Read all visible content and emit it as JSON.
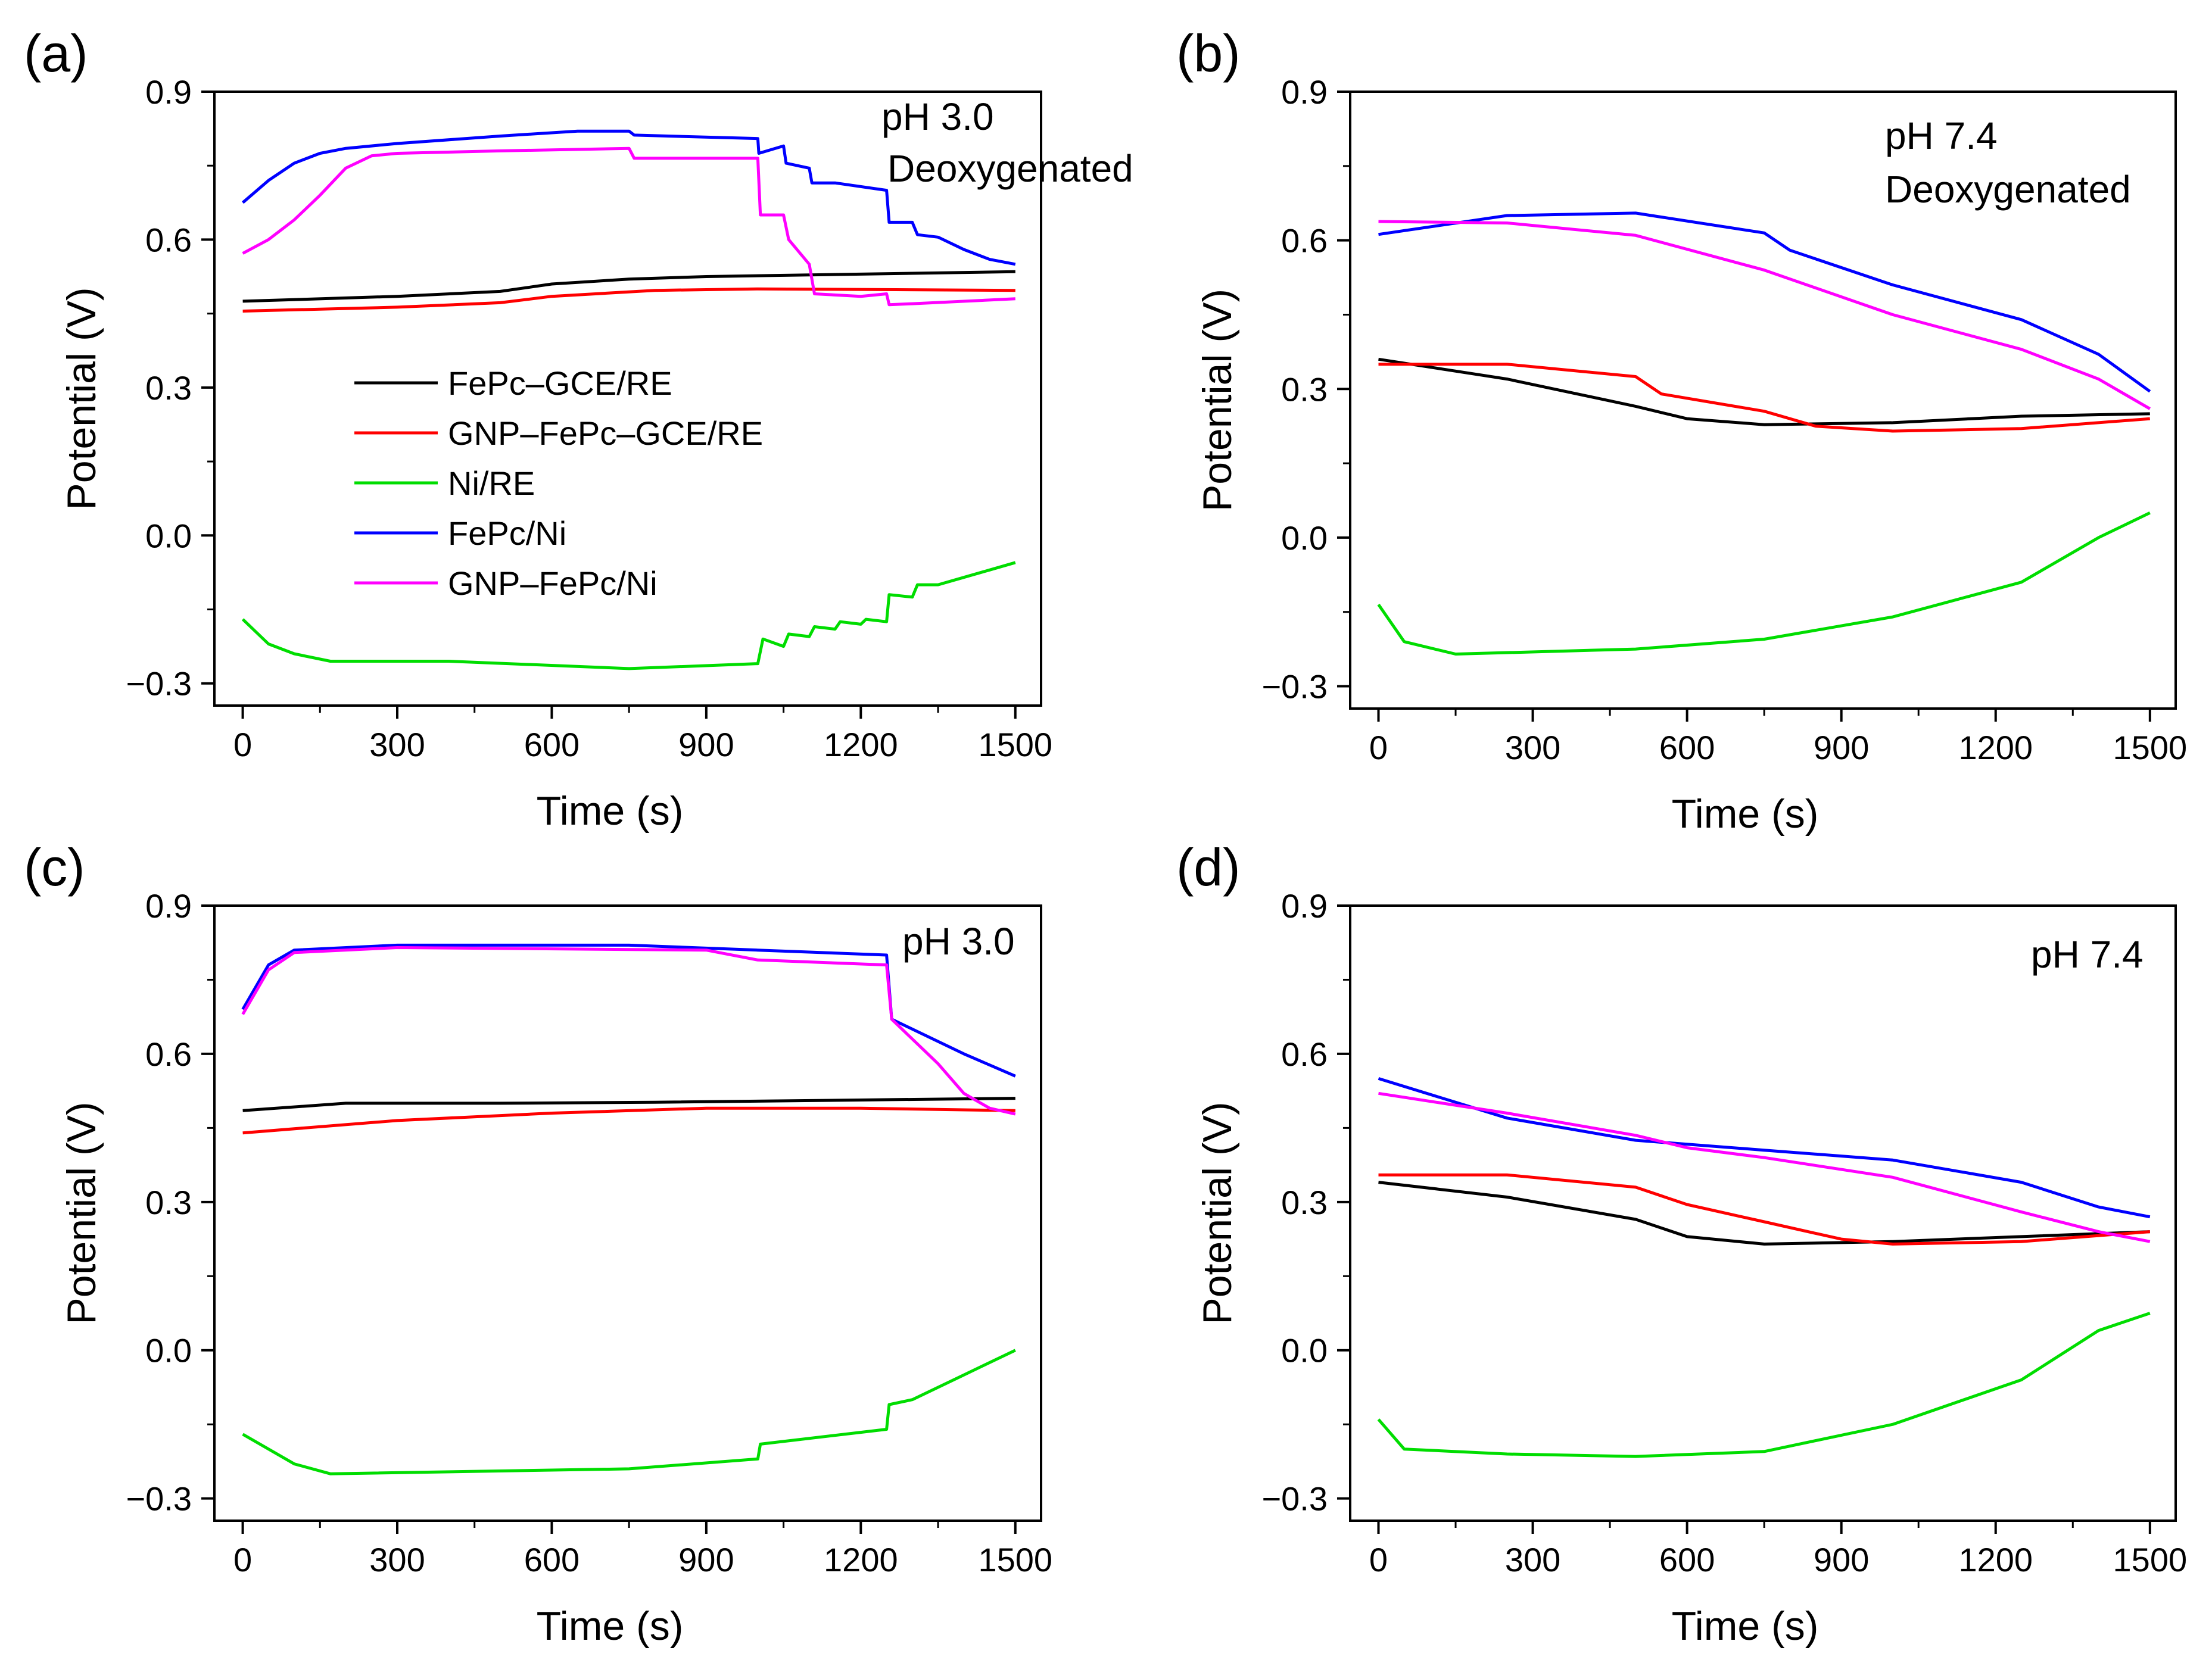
{
  "colors": {
    "FePc-GCE/RE": "#000000",
    "GNP-FePc-GCE/RE": "#ff0000",
    "Ni/RE": "#00dd00",
    "FePc/Ni": "#0000ff",
    "GNP-FePc/Ni": "#ff00ff"
  },
  "legend": [
    "FePc–GCE/RE",
    "GNP–FePc–GCE/RE",
    "Ni/RE",
    "FePc/Ni",
    "GNP–FePc/Ni"
  ],
  "chart_data": [
    {
      "type": "line",
      "panel": "(a)",
      "annotation": [
        "pH 3.0",
        "Deoxygenated"
      ],
      "xlabel": "Time (s)",
      "ylabel": "Potential (V)",
      "xlim": [
        -55,
        1550
      ],
      "ylim": [
        -0.345,
        0.9
      ],
      "xticks": [
        0,
        300,
        600,
        900,
        1200,
        1500
      ],
      "yticks": [
        -0.3,
        0.0,
        0.3,
        0.6,
        0.9
      ],
      "ytick_labels": [
        "−0.3",
        "0.0",
        "0.3",
        "0.6",
        "0.9"
      ],
      "legend": true,
      "series": [
        {
          "name": "FePc–GCE/RE",
          "points": [
            [
              0,
              0.475
            ],
            [
              300,
              0.485
            ],
            [
              500,
              0.495
            ],
            [
              600,
              0.51
            ],
            [
              750,
              0.52
            ],
            [
              900,
              0.525
            ],
            [
              1200,
              0.53
            ],
            [
              1500,
              0.535
            ]
          ]
        },
        {
          "name": "GNP–FePc–GCE/RE",
          "points": [
            [
              0,
              0.455
            ],
            [
              300,
              0.463
            ],
            [
              500,
              0.472
            ],
            [
              600,
              0.485
            ],
            [
              800,
              0.497
            ],
            [
              1000,
              0.5
            ],
            [
              1500,
              0.497
            ]
          ]
        },
        {
          "name": "Ni/RE",
          "points": [
            [
              0,
              -0.17
            ],
            [
              50,
              -0.22
            ],
            [
              100,
              -0.24
            ],
            [
              170,
              -0.255
            ],
            [
              400,
              -0.255
            ],
            [
              750,
              -0.27
            ],
            [
              1000,
              -0.26
            ],
            [
              1010,
              -0.21
            ],
            [
              1050,
              -0.225
            ],
            [
              1060,
              -0.2
            ],
            [
              1100,
              -0.205
            ],
            [
              1110,
              -0.185
            ],
            [
              1150,
              -0.19
            ],
            [
              1160,
              -0.175
            ],
            [
              1200,
              -0.18
            ],
            [
              1210,
              -0.17
            ],
            [
              1250,
              -0.175
            ],
            [
              1255,
              -0.12
            ],
            [
              1300,
              -0.125
            ],
            [
              1310,
              -0.1
            ],
            [
              1350,
              -0.1
            ],
            [
              1400,
              -0.085
            ],
            [
              1450,
              -0.07
            ],
            [
              1500,
              -0.055
            ]
          ]
        },
        {
          "name": "FePc/Ni",
          "points": [
            [
              0,
              0.675
            ],
            [
              50,
              0.72
            ],
            [
              100,
              0.755
            ],
            [
              150,
              0.775
            ],
            [
              200,
              0.785
            ],
            [
              300,
              0.795
            ],
            [
              500,
              0.81
            ],
            [
              650,
              0.82
            ],
            [
              750,
              0.82
            ],
            [
              760,
              0.812
            ],
            [
              1000,
              0.805
            ],
            [
              1002,
              0.775
            ],
            [
              1050,
              0.79
            ],
            [
              1055,
              0.755
            ],
            [
              1100,
              0.745
            ],
            [
              1105,
              0.715
            ],
            [
              1150,
              0.715
            ],
            [
              1250,
              0.7
            ],
            [
              1255,
              0.635
            ],
            [
              1300,
              0.635
            ],
            [
              1310,
              0.61
            ],
            [
              1350,
              0.605
            ],
            [
              1400,
              0.58
            ],
            [
              1450,
              0.56
            ],
            [
              1500,
              0.55
            ]
          ]
        },
        {
          "name": "GNP–FePc/Ni",
          "points": [
            [
              0,
              0.572
            ],
            [
              50,
              0.6
            ],
            [
              100,
              0.64
            ],
            [
              150,
              0.69
            ],
            [
              200,
              0.745
            ],
            [
              250,
              0.77
            ],
            [
              300,
              0.775
            ],
            [
              500,
              0.78
            ],
            [
              750,
              0.785
            ],
            [
              760,
              0.765
            ],
            [
              1000,
              0.765
            ],
            [
              1005,
              0.65
            ],
            [
              1050,
              0.65
            ],
            [
              1060,
              0.6
            ],
            [
              1100,
              0.55
            ],
            [
              1110,
              0.49
            ],
            [
              1200,
              0.485
            ],
            [
              1250,
              0.49
            ],
            [
              1255,
              0.468
            ],
            [
              1300,
              0.47
            ],
            [
              1500,
              0.48
            ]
          ]
        }
      ]
    },
    {
      "type": "line",
      "panel": "(b)",
      "annotation": [
        "pH 7.4",
        "Deoxygenated"
      ],
      "xlabel": "Time (s)",
      "ylabel": "Potential (V)",
      "xlim": [
        -55,
        1550
      ],
      "ylim": [
        -0.345,
        0.9
      ],
      "xticks": [
        0,
        300,
        600,
        900,
        1200,
        1500
      ],
      "yticks": [
        -0.3,
        0.0,
        0.3,
        0.6,
        0.9
      ],
      "ytick_labels": [
        "−0.3",
        "0.0",
        "0.3",
        "0.6",
        "0.9"
      ],
      "legend": false,
      "series": [
        {
          "name": "FePc–GCE/RE",
          "points": [
            [
              0,
              0.36
            ],
            [
              250,
              0.32
            ],
            [
              500,
              0.265
            ],
            [
              600,
              0.24
            ],
            [
              750,
              0.228
            ],
            [
              1000,
              0.232
            ],
            [
              1250,
              0.245
            ],
            [
              1500,
              0.25
            ]
          ]
        },
        {
          "name": "GNP–FePc–GCE/RE",
          "points": [
            [
              0,
              0.35
            ],
            [
              250,
              0.35
            ],
            [
              500,
              0.325
            ],
            [
              550,
              0.29
            ],
            [
              750,
              0.255
            ],
            [
              850,
              0.225
            ],
            [
              1000,
              0.215
            ],
            [
              1250,
              0.22
            ],
            [
              1500,
              0.24
            ]
          ]
        },
        {
          "name": "Ni/RE",
          "points": [
            [
              0,
              -0.135
            ],
            [
              50,
              -0.21
            ],
            [
              150,
              -0.235
            ],
            [
              500,
              -0.225
            ],
            [
              750,
              -0.205
            ],
            [
              1000,
              -0.16
            ],
            [
              1250,
              -0.09
            ],
            [
              1400,
              0.0
            ],
            [
              1500,
              0.05
            ]
          ]
        },
        {
          "name": "FePc/Ni",
          "points": [
            [
              0,
              0.612
            ],
            [
              250,
              0.65
            ],
            [
              500,
              0.655
            ],
            [
              750,
              0.615
            ],
            [
              800,
              0.58
            ],
            [
              1000,
              0.51
            ],
            [
              1250,
              0.44
            ],
            [
              1400,
              0.37
            ],
            [
              1500,
              0.295
            ]
          ]
        },
        {
          "name": "GNP–FePc/Ni",
          "points": [
            [
              0,
              0.638
            ],
            [
              250,
              0.635
            ],
            [
              500,
              0.61
            ],
            [
              750,
              0.54
            ],
            [
              1000,
              0.45
            ],
            [
              1250,
              0.38
            ],
            [
              1400,
              0.32
            ],
            [
              1500,
              0.26
            ]
          ]
        }
      ]
    },
    {
      "type": "line",
      "panel": "(c)",
      "annotation": [
        "pH 3.0"
      ],
      "xlabel": "Time (s)",
      "ylabel": "Potential (V)",
      "xlim": [
        -55,
        1550
      ],
      "ylim": [
        -0.345,
        0.9
      ],
      "xticks": [
        0,
        300,
        600,
        900,
        1200,
        1500
      ],
      "yticks": [
        -0.3,
        0.0,
        0.3,
        0.6,
        0.9
      ],
      "ytick_labels": [
        "−0.3",
        "0.0",
        "0.3",
        "0.6",
        "0.9"
      ],
      "legend": false,
      "series": [
        {
          "name": "FePc–GCE/RE",
          "points": [
            [
              0,
              0.485
            ],
            [
              200,
              0.5
            ],
            [
              500,
              0.5
            ],
            [
              800,
              0.502
            ],
            [
              1500,
              0.51
            ]
          ]
        },
        {
          "name": "GNP–FePc–GCE/RE",
          "points": [
            [
              0,
              0.44
            ],
            [
              300,
              0.465
            ],
            [
              600,
              0.48
            ],
            [
              900,
              0.49
            ],
            [
              1200,
              0.49
            ],
            [
              1500,
              0.485
            ]
          ]
        },
        {
          "name": "Ni/RE",
          "points": [
            [
              0,
              -0.17
            ],
            [
              100,
              -0.23
            ],
            [
              170,
              -0.25
            ],
            [
              750,
              -0.24
            ],
            [
              1000,
              -0.22
            ],
            [
              1005,
              -0.19
            ],
            [
              1250,
              -0.16
            ],
            [
              1255,
              -0.11
            ],
            [
              1300,
              -0.1
            ],
            [
              1400,
              -0.05
            ],
            [
              1500,
              0.0
            ]
          ]
        },
        {
          "name": "FePc/Ni",
          "points": [
            [
              0,
              0.69
            ],
            [
              50,
              0.78
            ],
            [
              100,
              0.81
            ],
            [
              300,
              0.82
            ],
            [
              750,
              0.82
            ],
            [
              1000,
              0.81
            ],
            [
              1250,
              0.8
            ],
            [
              1260,
              0.67
            ],
            [
              1300,
              0.65
            ],
            [
              1400,
              0.6
            ],
            [
              1500,
              0.555
            ]
          ]
        },
        {
          "name": "GNP–FePc/Ni",
          "points": [
            [
              0,
              0.68
            ],
            [
              50,
              0.77
            ],
            [
              100,
              0.805
            ],
            [
              300,
              0.815
            ],
            [
              900,
              0.81
            ],
            [
              1000,
              0.79
            ],
            [
              1250,
              0.78
            ],
            [
              1260,
              0.67
            ],
            [
              1350,
              0.58
            ],
            [
              1400,
              0.52
            ],
            [
              1450,
              0.49
            ],
            [
              1500,
              0.478
            ]
          ]
        }
      ]
    },
    {
      "type": "line",
      "panel": "(d)",
      "annotation": [
        "pH 7.4"
      ],
      "xlabel": "Time (s)",
      "ylabel": "Potential (V)",
      "xlim": [
        -55,
        1550
      ],
      "ylim": [
        -0.345,
        0.9
      ],
      "xticks": [
        0,
        300,
        600,
        900,
        1200,
        1500
      ],
      "yticks": [
        -0.3,
        0.0,
        0.3,
        0.6,
        0.9
      ],
      "ytick_labels": [
        "−0.3",
        "0.0",
        "0.3",
        "0.6",
        "0.9"
      ],
      "legend": false,
      "series": [
        {
          "name": "FePc–GCE/RE",
          "points": [
            [
              0,
              0.34
            ],
            [
              250,
              0.31
            ],
            [
              500,
              0.265
            ],
            [
              600,
              0.23
            ],
            [
              750,
              0.215
            ],
            [
              1000,
              0.22
            ],
            [
              1250,
              0.23
            ],
            [
              1500,
              0.24
            ]
          ]
        },
        {
          "name": "GNP–FePc–GCE/RE",
          "points": [
            [
              0,
              0.355
            ],
            [
              250,
              0.355
            ],
            [
              500,
              0.33
            ],
            [
              600,
              0.295
            ],
            [
              750,
              0.26
            ],
            [
              900,
              0.225
            ],
            [
              1000,
              0.215
            ],
            [
              1250,
              0.22
            ],
            [
              1500,
              0.24
            ]
          ]
        },
        {
          "name": "Ni/RE",
          "points": [
            [
              0,
              -0.14
            ],
            [
              50,
              -0.2
            ],
            [
              250,
              -0.21
            ],
            [
              500,
              -0.215
            ],
            [
              750,
              -0.205
            ],
            [
              1000,
              -0.15
            ],
            [
              1250,
              -0.06
            ],
            [
              1400,
              0.04
            ],
            [
              1500,
              0.075
            ]
          ]
        },
        {
          "name": "FePc/Ni",
          "points": [
            [
              0,
              0.55
            ],
            [
              250,
              0.47
            ],
            [
              500,
              0.425
            ],
            [
              750,
              0.405
            ],
            [
              1000,
              0.385
            ],
            [
              1250,
              0.34
            ],
            [
              1400,
              0.29
            ],
            [
              1500,
              0.27
            ]
          ]
        },
        {
          "name": "GNP–FePc/Ni",
          "points": [
            [
              0,
              0.52
            ],
            [
              250,
              0.48
            ],
            [
              500,
              0.435
            ],
            [
              600,
              0.41
            ],
            [
              750,
              0.39
            ],
            [
              1000,
              0.35
            ],
            [
              1250,
              0.28
            ],
            [
              1400,
              0.24
            ],
            [
              1500,
              0.22
            ]
          ]
        }
      ]
    }
  ]
}
